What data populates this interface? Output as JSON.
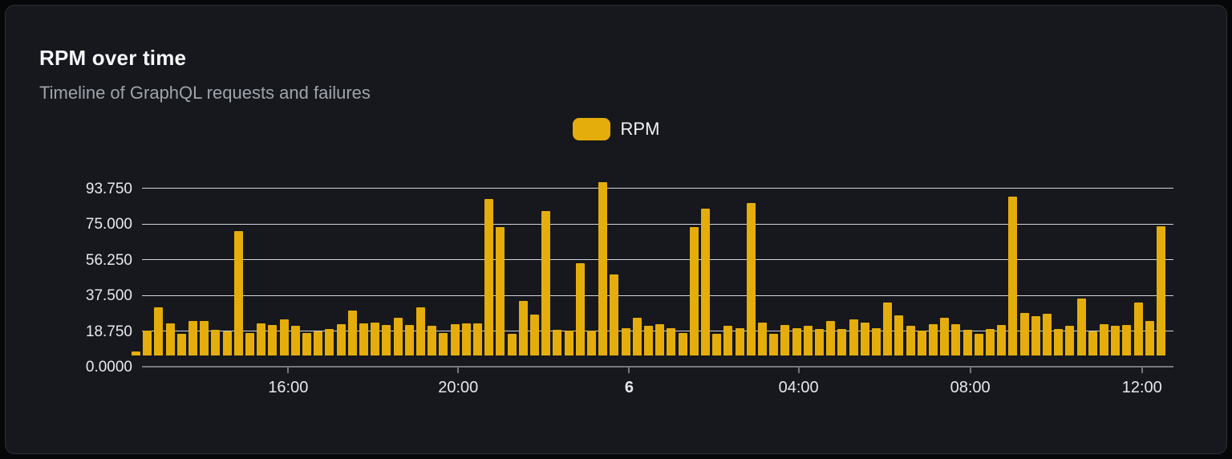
{
  "card": {
    "title": "RPM over time",
    "subtitle": "Timeline of GraphQL requests and failures"
  },
  "legend": {
    "label": "RPM",
    "color": "#e4ad0b"
  },
  "chart_data": {
    "type": "bar",
    "title": "RPM over time",
    "subtitle": "Timeline of GraphQL requests and failures",
    "legend_entries": [
      "RPM"
    ],
    "grid": true,
    "legend_position": "top-center",
    "ylim": [
      0,
      93.75
    ],
    "y_ticks": [
      {
        "label": "0.0000",
        "value": 0
      },
      {
        "label": "18.750",
        "value": 18.75
      },
      {
        "label": "37.500",
        "value": 37.5
      },
      {
        "label": "56.250",
        "value": 56.25
      },
      {
        "label": "75.000",
        "value": 75
      },
      {
        "label": "93.750",
        "value": 93.75
      }
    ],
    "x_ticks": [
      {
        "label": "16:00",
        "pos": 0.1418,
        "bold": false
      },
      {
        "label": "20:00",
        "pos": 0.3066,
        "bold": false
      },
      {
        "label": "6",
        "pos": 0.4723,
        "bold": true
      },
      {
        "label": "04:00",
        "pos": 0.6366,
        "bold": false
      },
      {
        "label": "08:00",
        "pos": 0.803,
        "bold": false
      },
      {
        "label": "12:00",
        "pos": 0.9695,
        "bold": false
      }
    ],
    "series": [
      {
        "name": "RPM",
        "color": "#e4ad0b",
        "values": [
          2,
          13,
          25.5,
          17,
          11.5,
          18,
          18,
          13.5,
          12.5,
          65.5,
          12,
          17,
          16,
          19,
          15.5,
          12,
          12.5,
          14,
          16.5,
          23.5,
          17,
          17.5,
          16,
          20,
          16,
          25.5,
          15.5,
          12,
          16.5,
          17,
          17,
          82,
          67.5,
          11.5,
          28.5,
          21.5,
          76,
          13.5,
          13,
          48.5,
          13,
          91,
          42.5,
          14.5,
          20,
          15.5,
          16.5,
          14.5,
          12,
          67.5,
          77,
          11.5,
          15.5,
          14.5,
          80,
          17.5,
          11.5,
          16,
          14.5,
          15.5,
          14,
          18,
          14,
          19,
          17.5,
          14.5,
          28,
          21,
          15.5,
          13,
          16.5,
          20,
          16.5,
          13.5,
          11.5,
          14,
          16,
          83.5,
          22.5,
          20.5,
          22,
          14,
          15.5,
          30,
          12.5,
          16.5,
          15.5,
          16,
          28,
          18,
          68
        ]
      }
    ]
  }
}
